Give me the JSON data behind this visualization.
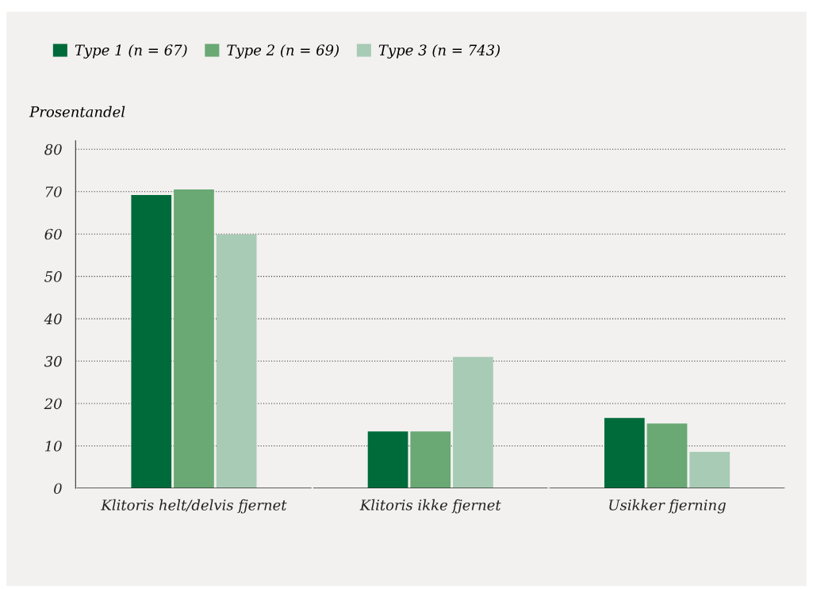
{
  "chart_data": {
    "type": "bar",
    "ylabel": "Prosentandel",
    "categories": [
      "Klitoris helt/delvis fjernet",
      "Klitoris ikke fjernet",
      "Usikker fjerning"
    ],
    "series": [
      {
        "name": "Type 1 (n = 67)",
        "color": "#006b3a",
        "values": [
          69.2,
          13.4,
          16.6
        ]
      },
      {
        "name": "Type 2 (n = 69)",
        "color": "#6aa874",
        "values": [
          70.5,
          13.4,
          15.3
        ]
      },
      {
        "name": "Type 3 (n = 743)",
        "color": "#a8cbb5",
        "values": [
          59.9,
          31.0,
          8.6
        ]
      }
    ],
    "ylim": [
      0,
      82
    ],
    "yticks": [
      0,
      10,
      20,
      30,
      40,
      50,
      60,
      70,
      80
    ],
    "grid": "y",
    "legend": "top left"
  }
}
